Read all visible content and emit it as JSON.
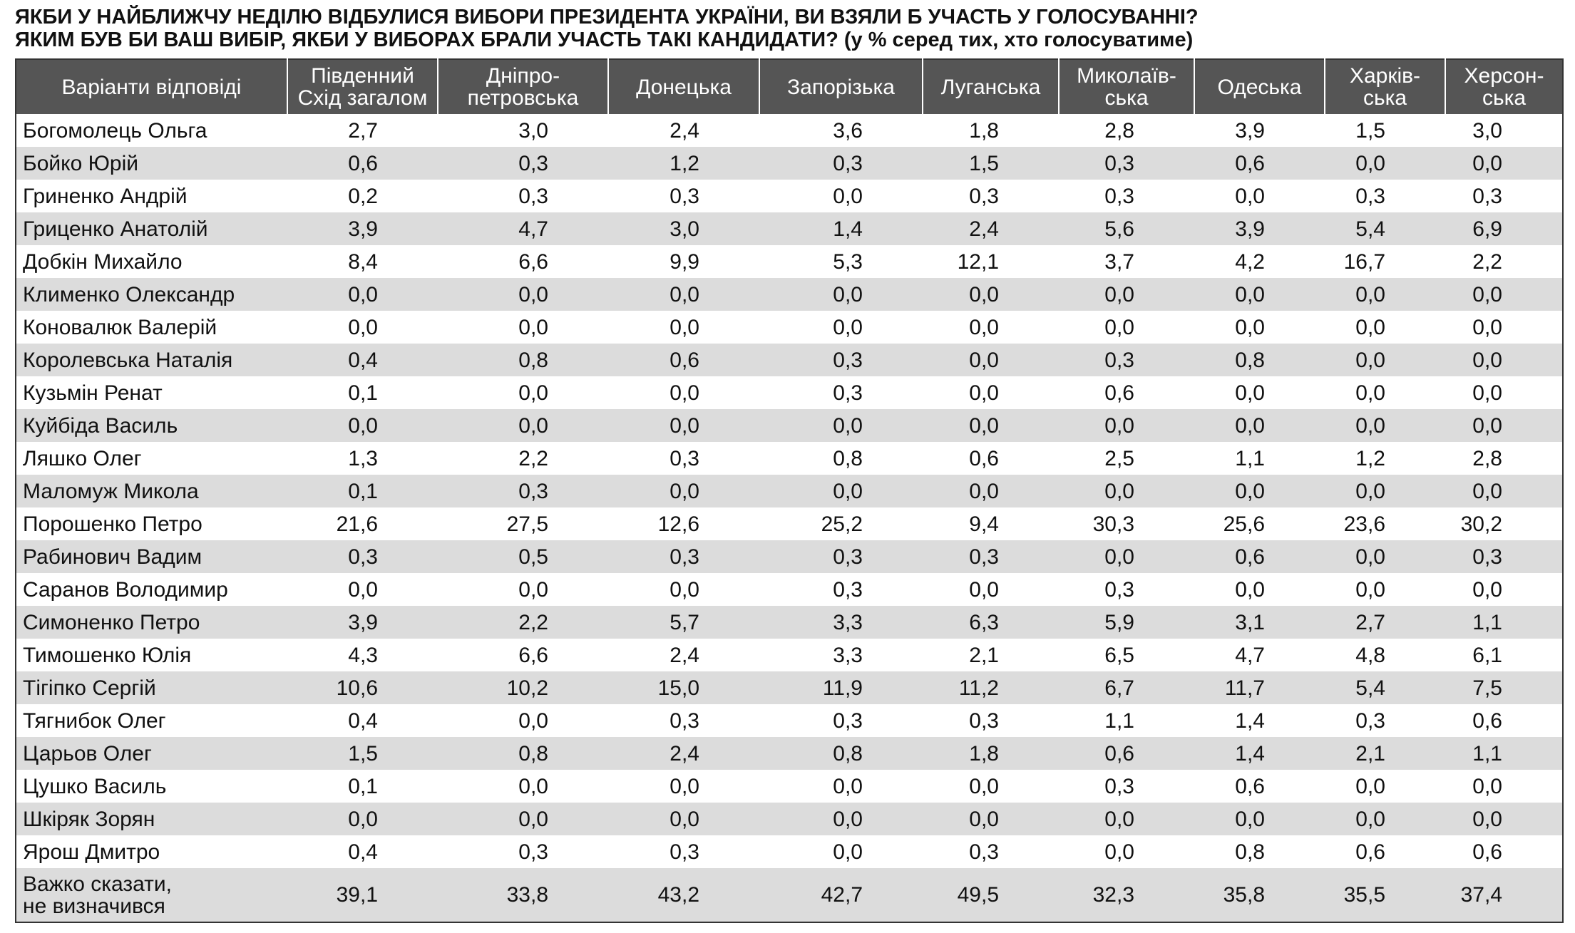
{
  "title": [
    "ЯКБИ У НАЙБЛИЖЧУ НЕДІЛЮ ВІДБУЛИСЯ ВИБОРИ ПРЕЗИДЕНТА УКРАЇНИ, ВИ ВЗЯЛИ Б УЧАСТЬ У ГОЛОСУВАННІ?",
    "ЯКИМ БУВ БИ ВАШ ВИБІР, ЯКБИ У ВИБОРАХ БРАЛИ УЧАСТЬ ТАКІ КАНДИДАТИ? (у % серед тих, хто голосуватиме)"
  ],
  "table": {
    "header": [
      "Варіанти відповіді",
      "Південний\nСхід загалом",
      "Дніпро-\nпетровська",
      "Донецька",
      "Запорізька",
      "Луганська",
      "Миколаїв-\nська",
      "Одеська",
      "Харків-\nська",
      "Херсон-\nська"
    ],
    "rows": [
      [
        "Богомолець Ольга",
        "2,7",
        "3,0",
        "2,4",
        "3,6",
        "1,8",
        "2,8",
        "3,9",
        "1,5",
        "3,0"
      ],
      [
        "Бойко Юрій",
        "0,6",
        "0,3",
        "1,2",
        "0,3",
        "1,5",
        "0,3",
        "0,6",
        "0,0",
        "0,0"
      ],
      [
        "Гриненко Андрій",
        "0,2",
        "0,3",
        "0,3",
        "0,0",
        "0,3",
        "0,3",
        "0,0",
        "0,3",
        "0,3"
      ],
      [
        "Гриценко Анатолій",
        "3,9",
        "4,7",
        "3,0",
        "1,4",
        "2,4",
        "5,6",
        "3,9",
        "5,4",
        "6,9"
      ],
      [
        "Добкін Михайло",
        "8,4",
        "6,6",
        "9,9",
        "5,3",
        "12,1",
        "3,7",
        "4,2",
        "16,7",
        "2,2"
      ],
      [
        "Клименко Олександр",
        "0,0",
        "0,0",
        "0,0",
        "0,0",
        "0,0",
        "0,0",
        "0,0",
        "0,0",
        "0,0"
      ],
      [
        "Коновалюк Валерій",
        "0,0",
        "0,0",
        "0,0",
        "0,0",
        "0,0",
        "0,0",
        "0,0",
        "0,0",
        "0,0"
      ],
      [
        "Королевська Наталія",
        "0,4",
        "0,8",
        "0,6",
        "0,3",
        "0,0",
        "0,3",
        "0,8",
        "0,0",
        "0,0"
      ],
      [
        "Кузьмін Ренат",
        "0,1",
        "0,0",
        "0,0",
        "0,3",
        "0,0",
        "0,6",
        "0,0",
        "0,0",
        "0,0"
      ],
      [
        "Куйбіда Василь",
        "0,0",
        "0,0",
        "0,0",
        "0,0",
        "0,0",
        "0,0",
        "0,0",
        "0,0",
        "0,0"
      ],
      [
        "Ляшко Олег",
        "1,3",
        "2,2",
        "0,3",
        "0,8",
        "0,6",
        "2,5",
        "1,1",
        "1,2",
        "2,8"
      ],
      [
        "Маломуж Микола",
        "0,1",
        "0,3",
        "0,0",
        "0,0",
        "0,0",
        "0,0",
        "0,0",
        "0,0",
        "0,0"
      ],
      [
        "Порошенко Петро",
        "21,6",
        "27,5",
        "12,6",
        "25,2",
        "9,4",
        "30,3",
        "25,6",
        "23,6",
        "30,2"
      ],
      [
        "Рабинович Вадим",
        "0,3",
        "0,5",
        "0,3",
        "0,3",
        "0,3",
        "0,0",
        "0,6",
        "0,0",
        "0,3"
      ],
      [
        "Саранов Володимир",
        "0,0",
        "0,0",
        "0,0",
        "0,3",
        "0,0",
        "0,3",
        "0,0",
        "0,0",
        "0,0"
      ],
      [
        "Симоненко Петро",
        "3,9",
        "2,2",
        "5,7",
        "3,3",
        "6,3",
        "5,9",
        "3,1",
        "2,7",
        "1,1"
      ],
      [
        "Тимошенко Юлія",
        "4,3",
        "6,6",
        "2,4",
        "3,3",
        "2,1",
        "6,5",
        "4,7",
        "4,8",
        "6,1"
      ],
      [
        "Тігіпко Сергій",
        "10,6",
        "10,2",
        "15,0",
        "11,9",
        "11,2",
        "6,7",
        "11,7",
        "5,4",
        "7,5"
      ],
      [
        "Тягнибок Олег",
        "0,4",
        "0,0",
        "0,3",
        "0,3",
        "0,3",
        "1,1",
        "1,4",
        "0,3",
        "0,6"
      ],
      [
        "Царьов Олег",
        "1,5",
        "0,8",
        "2,4",
        "0,8",
        "1,8",
        "0,6",
        "1,4",
        "2,1",
        "1,1"
      ],
      [
        "Цушко Василь",
        "0,1",
        "0,0",
        "0,0",
        "0,0",
        "0,0",
        "0,3",
        "0,6",
        "0,0",
        "0,0"
      ],
      [
        "Шкіряк Зорян",
        "0,0",
        "0,0",
        "0,0",
        "0,0",
        "0,0",
        "0,0",
        "0,0",
        "0,0",
        "0,0"
      ],
      [
        "Ярош Дмитро",
        "0,4",
        "0,3",
        "0,3",
        "0,0",
        "0,3",
        "0,0",
        "0,8",
        "0,6",
        "0,6"
      ],
      [
        "Важко сказати,\nне визначився",
        "39,1",
        "33,8",
        "43,2",
        "42,7",
        "49,5",
        "32,3",
        "35,8",
        "35,5",
        "37,4"
      ]
    ]
  }
}
